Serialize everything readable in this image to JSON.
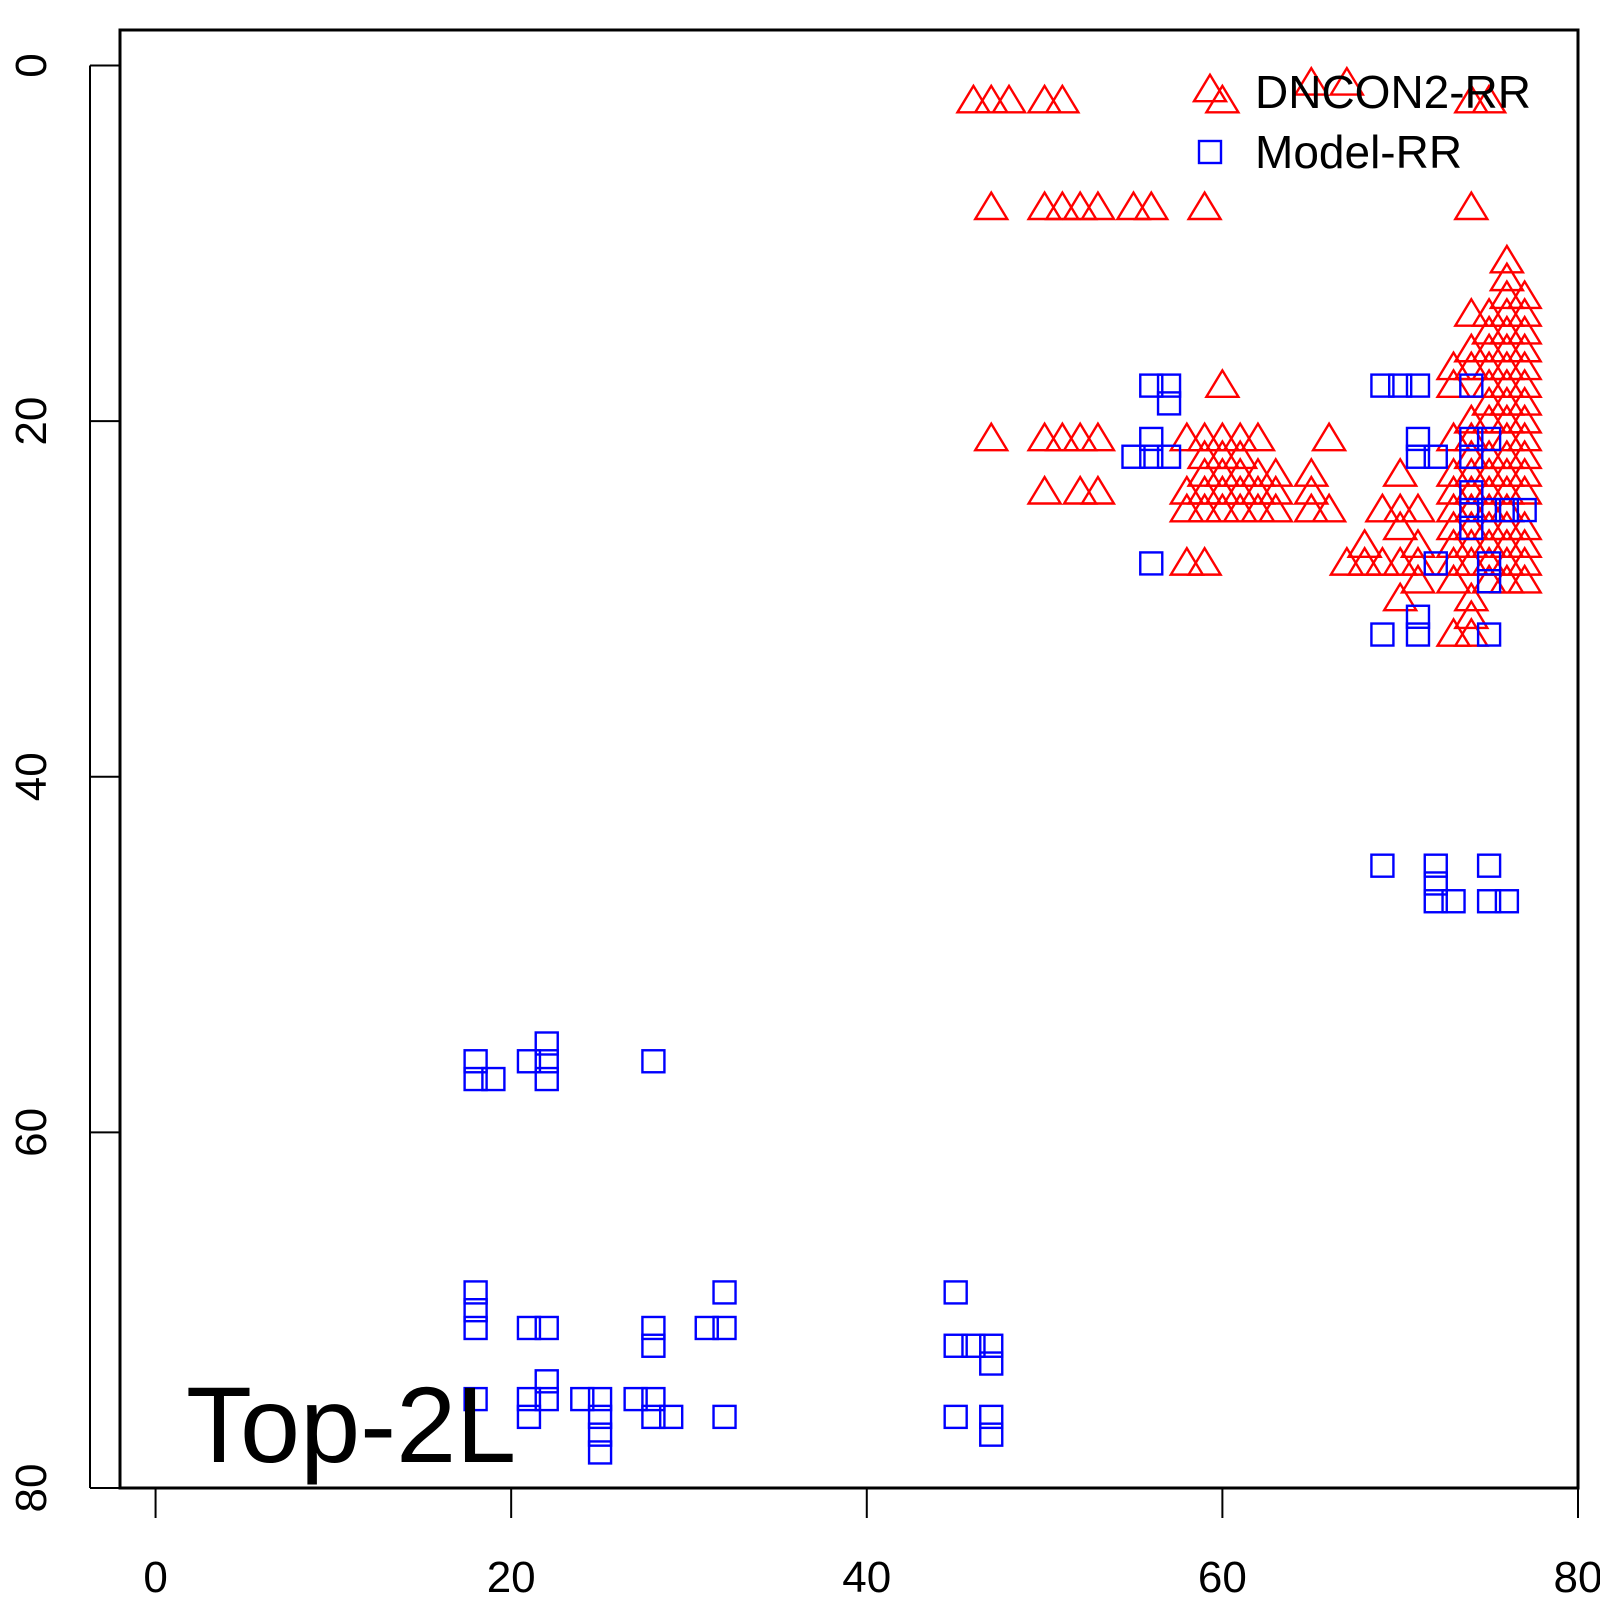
{
  "chart_data": {
    "type": "scatter",
    "title": "",
    "annotation": "Top-2L",
    "xlabel": "",
    "ylabel": "",
    "xlim": [
      -2,
      80
    ],
    "ylim": [
      -2,
      80
    ],
    "y_reversed": true,
    "x_ticks": [
      "0",
      "20",
      "40",
      "60",
      "80"
    ],
    "y_ticks": [
      "0",
      "20",
      "40",
      "60",
      "80"
    ],
    "legend_position": "top-right",
    "series": [
      {
        "name": "DNCON2-RR",
        "marker": "triangle",
        "color": "#ff0000",
        "points": [
          [
            46,
            2
          ],
          [
            47,
            2
          ],
          [
            48,
            2
          ],
          [
            50,
            2
          ],
          [
            51,
            2
          ],
          [
            65,
            1
          ],
          [
            67,
            1
          ],
          [
            60,
            2
          ],
          [
            74,
            2
          ],
          [
            75,
            2
          ],
          [
            47,
            8
          ],
          [
            50,
            8
          ],
          [
            51,
            8
          ],
          [
            52,
            8
          ],
          [
            53,
            8
          ],
          [
            55,
            8
          ],
          [
            56,
            8
          ],
          [
            59,
            8
          ],
          [
            74,
            8
          ],
          [
            76,
            11
          ],
          [
            76,
            12
          ],
          [
            76,
            13
          ],
          [
            77,
            13
          ],
          [
            74,
            14
          ],
          [
            75,
            14
          ],
          [
            76,
            14
          ],
          [
            77,
            14
          ],
          [
            75,
            15
          ],
          [
            76,
            15
          ],
          [
            77,
            15
          ],
          [
            74,
            16
          ],
          [
            75,
            16
          ],
          [
            76,
            16
          ],
          [
            77,
            16
          ],
          [
            73,
            17
          ],
          [
            74,
            17
          ],
          [
            75,
            17
          ],
          [
            76,
            17
          ],
          [
            77,
            17
          ],
          [
            60,
            18
          ],
          [
            73,
            18
          ],
          [
            75,
            18
          ],
          [
            76,
            18
          ],
          [
            77,
            18
          ],
          [
            75,
            19
          ],
          [
            76,
            19
          ],
          [
            77,
            19
          ],
          [
            74,
            20
          ],
          [
            75,
            20
          ],
          [
            76,
            20
          ],
          [
            77,
            20
          ],
          [
            47,
            21
          ],
          [
            50,
            21
          ],
          [
            51,
            21
          ],
          [
            52,
            21
          ],
          [
            53,
            21
          ],
          [
            58,
            21
          ],
          [
            59,
            21
          ],
          [
            60,
            21
          ],
          [
            61,
            21
          ],
          [
            62,
            21
          ],
          [
            66,
            21
          ],
          [
            73,
            21
          ],
          [
            74,
            21
          ],
          [
            76,
            21
          ],
          [
            77,
            21
          ],
          [
            59,
            22
          ],
          [
            60,
            22
          ],
          [
            61,
            22
          ],
          [
            74,
            22
          ],
          [
            75,
            22
          ],
          [
            76,
            22
          ],
          [
            77,
            22
          ],
          [
            59,
            23
          ],
          [
            60,
            23
          ],
          [
            61,
            23
          ],
          [
            62,
            23
          ],
          [
            63,
            23
          ],
          [
            65,
            23
          ],
          [
            70,
            23
          ],
          [
            73,
            23
          ],
          [
            74,
            23
          ],
          [
            75,
            23
          ],
          [
            76,
            23
          ],
          [
            77,
            23
          ],
          [
            50,
            24
          ],
          [
            52,
            24
          ],
          [
            53,
            24
          ],
          [
            58,
            24
          ],
          [
            59,
            24
          ],
          [
            60,
            24
          ],
          [
            61,
            24
          ],
          [
            62,
            24
          ],
          [
            63,
            24
          ],
          [
            65,
            24
          ],
          [
            73,
            24
          ],
          [
            74,
            24
          ],
          [
            75,
            24
          ],
          [
            76,
            24
          ],
          [
            77,
            24
          ],
          [
            58,
            25
          ],
          [
            59,
            25
          ],
          [
            60,
            25
          ],
          [
            61,
            25
          ],
          [
            62,
            25
          ],
          [
            63,
            25
          ],
          [
            65,
            25
          ],
          [
            66,
            25
          ],
          [
            69,
            25
          ],
          [
            70,
            25
          ],
          [
            71,
            25
          ],
          [
            73,
            25
          ],
          [
            74,
            25
          ],
          [
            75,
            25
          ],
          [
            76,
            25
          ],
          [
            70,
            26
          ],
          [
            73,
            26
          ],
          [
            74,
            26
          ],
          [
            75,
            26
          ],
          [
            76,
            26
          ],
          [
            77,
            26
          ],
          [
            68,
            27
          ],
          [
            71,
            27
          ],
          [
            73,
            27
          ],
          [
            74,
            27
          ],
          [
            75,
            27
          ],
          [
            76,
            27
          ],
          [
            77,
            27
          ],
          [
            58,
            28
          ],
          [
            59,
            28
          ],
          [
            67,
            28
          ],
          [
            68,
            28
          ],
          [
            69,
            28
          ],
          [
            70,
            28
          ],
          [
            71,
            28
          ],
          [
            73,
            28
          ],
          [
            74,
            28
          ],
          [
            75,
            28
          ],
          [
            76,
            28
          ],
          [
            77,
            28
          ],
          [
            71,
            29
          ],
          [
            73,
            29
          ],
          [
            75,
            29
          ],
          [
            76,
            29
          ],
          [
            77,
            29
          ],
          [
            70,
            30
          ],
          [
            74,
            30
          ],
          [
            74,
            31
          ],
          [
            73,
            32
          ],
          [
            74,
            32
          ]
        ]
      },
      {
        "name": "Model-RR",
        "marker": "square",
        "color": "#0000ff",
        "points": [
          [
            56,
            18
          ],
          [
            57,
            18
          ],
          [
            57,
            19
          ],
          [
            56,
            21
          ],
          [
            55,
            22
          ],
          [
            56,
            22
          ],
          [
            57,
            22
          ],
          [
            56,
            28
          ],
          [
            69,
            18
          ],
          [
            70,
            18
          ],
          [
            71,
            18
          ],
          [
            71,
            21
          ],
          [
            71,
            22
          ],
          [
            72,
            22
          ],
          [
            74,
            18
          ],
          [
            74,
            21
          ],
          [
            75,
            21
          ],
          [
            74,
            22
          ],
          [
            74,
            24
          ],
          [
            74,
            25
          ],
          [
            75,
            25
          ],
          [
            76,
            25
          ],
          [
            77,
            25
          ],
          [
            74,
            26
          ],
          [
            72,
            28
          ],
          [
            75,
            28
          ],
          [
            75,
            29
          ],
          [
            71,
            31
          ],
          [
            69,
            32
          ],
          [
            71,
            32
          ],
          [
            75,
            32
          ],
          [
            69,
            45
          ],
          [
            72,
            45
          ],
          [
            75,
            45
          ],
          [
            72,
            46
          ],
          [
            72,
            47
          ],
          [
            73,
            47
          ],
          [
            75,
            47
          ],
          [
            76,
            47
          ],
          [
            18,
            56
          ],
          [
            21,
            56
          ],
          [
            22,
            55
          ],
          [
            22,
            56
          ],
          [
            28,
            56
          ],
          [
            18,
            57
          ],
          [
            19,
            57
          ],
          [
            22,
            57
          ],
          [
            18,
            69
          ],
          [
            45,
            69
          ],
          [
            32,
            69
          ],
          [
            18,
            70
          ],
          [
            18,
            71
          ],
          [
            21,
            71
          ],
          [
            22,
            71
          ],
          [
            28,
            71
          ],
          [
            31,
            71
          ],
          [
            32,
            71
          ],
          [
            28,
            72
          ],
          [
            45,
            72
          ],
          [
            46,
            72
          ],
          [
            47,
            72
          ],
          [
            47,
            73
          ],
          [
            22,
            74
          ],
          [
            18,
            75
          ],
          [
            21,
            75
          ],
          [
            22,
            75
          ],
          [
            24,
            75
          ],
          [
            25,
            75
          ],
          [
            27,
            75
          ],
          [
            28,
            75
          ],
          [
            21,
            76
          ],
          [
            25,
            76
          ],
          [
            28,
            76
          ],
          [
            29,
            76
          ],
          [
            32,
            76
          ],
          [
            45,
            76
          ],
          [
            47,
            76
          ],
          [
            25,
            77
          ],
          [
            47,
            77
          ],
          [
            25,
            78
          ]
        ]
      }
    ]
  }
}
